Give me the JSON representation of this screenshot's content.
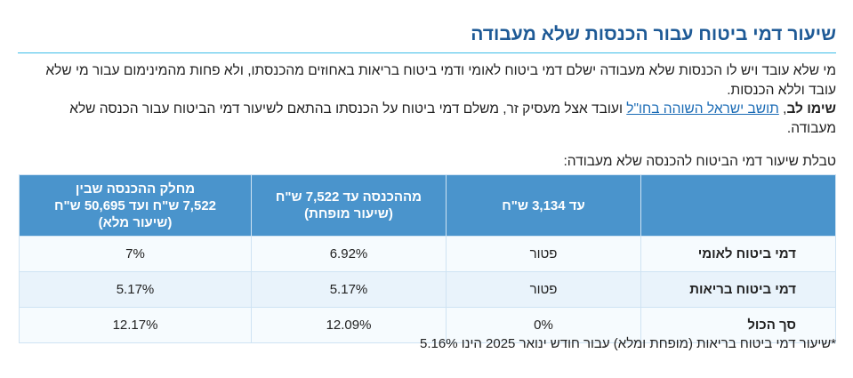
{
  "title": "שיעור דמי ביטוח עבור הכנסות שלא מעבודה",
  "para": {
    "line1": "מי שלא עובד ויש לו הכנסות שלא מעבודה ישלם דמי ביטוח לאומי ודמי ביטוח בריאות באחוזים מהכנסתו, ולא פחות מהמינימום עבור מי שלא עובד וללא הכנסות.",
    "note_bold": "שימו לב",
    "note_comma": ", ",
    "link": "תושב ישראל השוהה בחו\"ל",
    "note_rest": " ועובד אצל מעסיק זר, משלם דמי ביטוח על הכנסתו בהתאם לשיעור דמי הביטוח עבור הכנסה שלא מעבודה."
  },
  "caption": "טבלת שיעור דמי הביטוח להכנסה שלא מעבודה:",
  "table": {
    "headers": [
      "",
      "עד 3,134 ש\"ח",
      "מההכנסה עד 7,522 ש\"ח\n(שיעור מופחת)",
      "מחלק ההכנסה שבין\n7,522 ש\"ח  ועד 50,695 ש\"ח\n(שיעור מלא)"
    ],
    "rows": [
      {
        "label": "דמי ביטוח לאומי",
        "values": [
          "פטור",
          "6.92%",
          "7%"
        ]
      },
      {
        "label": "דמי ביטוח בריאות",
        "values": [
          "פטור",
          "5.17%",
          "5.17%"
        ]
      },
      {
        "label": "סך הכול",
        "values": [
          "0%",
          "12.09%",
          "12.17%"
        ]
      }
    ]
  },
  "footnote": "*שיעור דמי ביטוח בריאות (מופחת ומלא) עבור חודש ינואר 2025 הינו 5.16%"
}
